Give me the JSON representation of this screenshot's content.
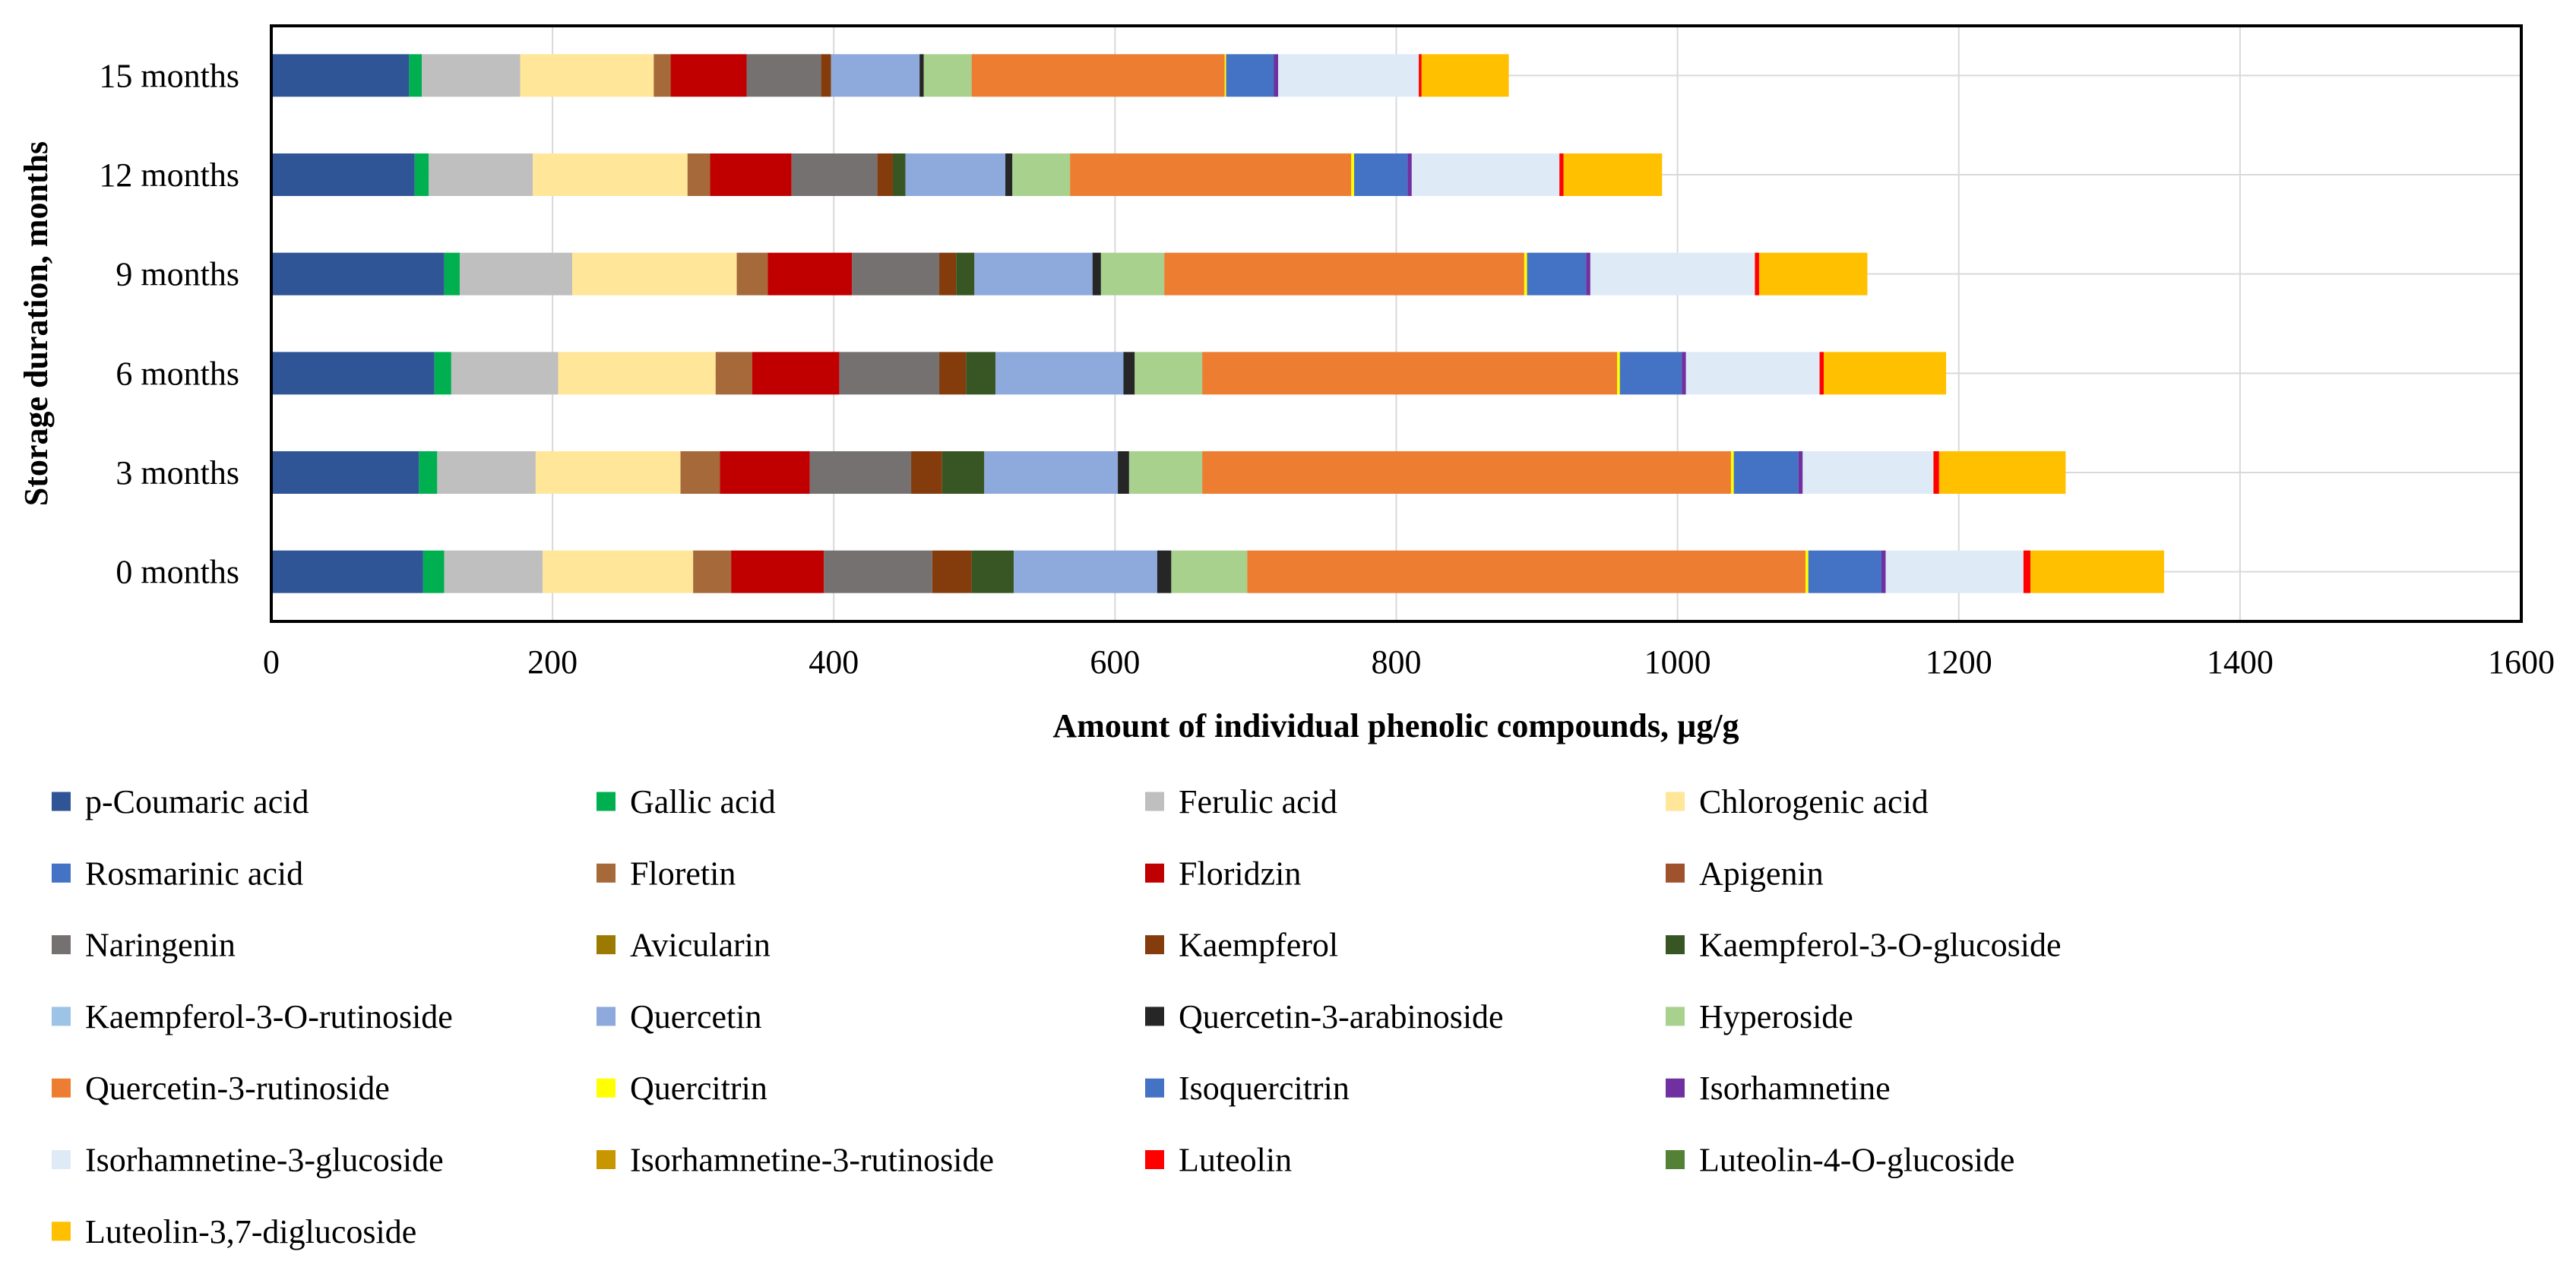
{
  "chart_data": {
    "type": "bar",
    "orientation": "horizontal",
    "stacked": true,
    "title": "",
    "xlabel": "Amount of individual  phenolic compounds, µg/g",
    "ylabel": "Storage duration,  months",
    "xlim": [
      0,
      1600
    ],
    "xticks": [
      "0",
      "200",
      "400",
      "600",
      "800",
      "1000",
      "1200",
      "1400",
      "1600"
    ],
    "grid": true,
    "legend_position": "bottom",
    "categories": [
      "0 months",
      "3 months",
      "6 months",
      "9 months",
      "12 months",
      "15 months"
    ],
    "series": [
      {
        "name": "p-Coumaric acid",
        "color": "#2F5597",
        "values": [
          108,
          105,
          116,
          123,
          102,
          98
        ]
      },
      {
        "name": "Gallic acid",
        "color": "#00B050",
        "values": [
          15,
          13,
          12,
          11,
          10,
          9
        ]
      },
      {
        "name": "Ferulic acid",
        "color": "#BFBFBF",
        "values": [
          70,
          70,
          76,
          80,
          74,
          70
        ]
      },
      {
        "name": "Chlorogenic acid",
        "color": "#FFE699",
        "values": [
          107,
          103,
          112,
          117,
          110,
          95
        ]
      },
      {
        "name": "Rosmarinic acid",
        "color": "#4472C4",
        "values": [
          0,
          0,
          0,
          0,
          0,
          0
        ]
      },
      {
        "name": "Floretin",
        "color": "#A5693A",
        "values": [
          27,
          28,
          26,
          22,
          16,
          12
        ]
      },
      {
        "name": "Floridzin",
        "color": "#C00000",
        "values": [
          66,
          64,
          62,
          60,
          58,
          54
        ]
      },
      {
        "name": "Apigenin",
        "color": "#A0522D",
        "values": [
          0,
          0,
          0,
          0,
          0,
          0
        ]
      },
      {
        "name": "Naringenin",
        "color": "#767171",
        "values": [
          77,
          72,
          71,
          62,
          61,
          53
        ]
      },
      {
        "name": "Avicularin",
        "color": "#9C7A00",
        "values": [
          0,
          0,
          0,
          0,
          0,
          0
        ]
      },
      {
        "name": "Kaempferol",
        "color": "#843C0C",
        "values": [
          28,
          22,
          19,
          12,
          11,
          7
        ]
      },
      {
        "name": "Kaempferol-3-O-glucoside",
        "color": "#375623",
        "values": [
          30,
          30,
          21,
          13,
          9,
          0
        ]
      },
      {
        "name": "Kaempferol-3-O-rutinoside",
        "color": "#9DC3E6",
        "values": [
          0,
          0,
          0,
          0,
          0,
          0
        ]
      },
      {
        "name": "Quercetin",
        "color": "#8EA9DB",
        "values": [
          102,
          95,
          91,
          84,
          71,
          63
        ]
      },
      {
        "name": "Quercetin-3-arabinoside",
        "color": "#262626",
        "values": [
          10,
          8,
          8,
          6,
          5,
          3
        ]
      },
      {
        "name": "Hyperoside",
        "color": "#A9D18E",
        "values": [
          54,
          52,
          48,
          45,
          41,
          34
        ]
      },
      {
        "name": "Quercetin-3-rutinoside",
        "color": "#ED7D31",
        "values": [
          397,
          376,
          295,
          256,
          200,
          180
        ]
      },
      {
        "name": "Quercitrin",
        "color": "#FFFF00",
        "values": [
          2,
          2,
          2,
          2,
          2,
          1
        ]
      },
      {
        "name": "Isoquercitrin",
        "color": "#4472C4",
        "values": [
          52,
          46,
          44,
          42,
          38,
          34
        ]
      },
      {
        "name": "Isorhamnetine",
        "color": "#7030A0",
        "values": [
          3,
          3,
          3,
          3,
          3,
          3
        ]
      },
      {
        "name": "Isorhamnetine-3-glucoside",
        "color": "#DEEBF7",
        "values": [
          98,
          93,
          95,
          117,
          105,
          100
        ]
      },
      {
        "name": "Isorhamnetine-3-rutinoside",
        "color": "#C89600",
        "values": [
          0,
          0,
          0,
          0,
          0,
          0
        ]
      },
      {
        "name": "Luteolin",
        "color": "#FF0000",
        "values": [
          5,
          4,
          3,
          3,
          3,
          2
        ]
      },
      {
        "name": "Luteolin-4-O-glucoside",
        "color": "#538135",
        "values": [
          0,
          0,
          0,
          0,
          0,
          0
        ]
      },
      {
        "name": "Luteolin-3,7-diglucoside",
        "color": "#FFC000",
        "values": [
          95,
          90,
          87,
          77,
          70,
          62
        ]
      }
    ]
  }
}
